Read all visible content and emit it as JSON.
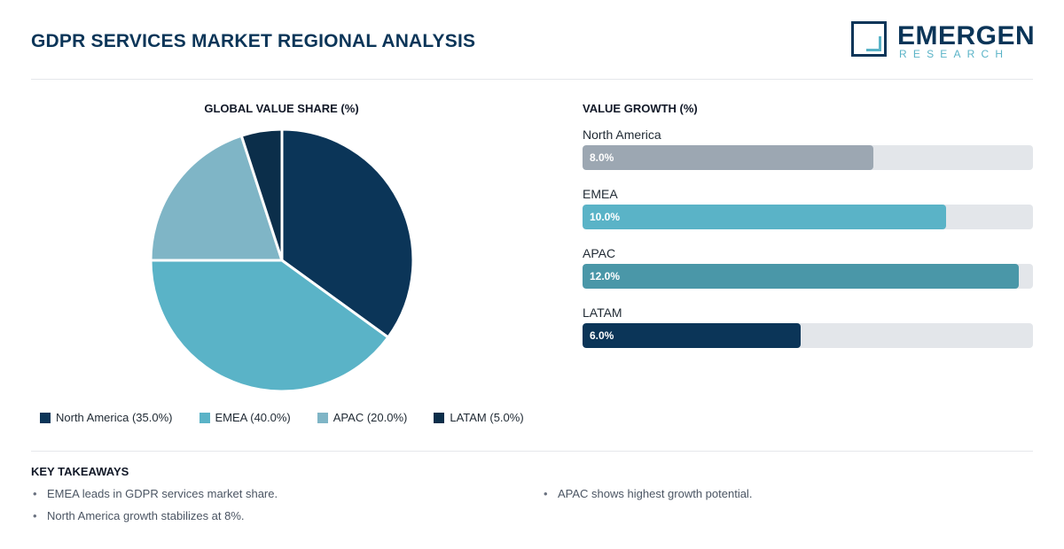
{
  "header": {
    "title": "GDPR SERVICES MARKET REGIONAL ANALYSIS",
    "logo_main": "EMERGEN",
    "logo_sub": "RESEARCH"
  },
  "colors": {
    "north_america": "#0b3558",
    "emea": "#5ab3c7",
    "apac": "#7fb5c6",
    "latam": "#0b2e4a",
    "growth_north_america": "#9ca7b2",
    "growth_emea": "#5ab3c7",
    "growth_apac": "#4a97a8",
    "growth_latam": "#0b3558",
    "track": "#e3e6ea"
  },
  "chart_data": [
    {
      "type": "pie",
      "title": "GLOBAL VALUE SHARE (%)",
      "categories": [
        "North America",
        "EMEA",
        "APAC",
        "LATAM"
      ],
      "values": [
        35.0,
        40.0,
        20.0,
        5.0
      ],
      "legend": [
        {
          "label": "North America (35.0%)",
          "color": "#0b3558"
        },
        {
          "label": "EMEA (40.0%)",
          "color": "#5ab3c7"
        },
        {
          "label": "APAC (20.0%)",
          "color": "#7fb5c6"
        },
        {
          "label": "LATAM (5.0%)",
          "color": "#0b2e4a"
        }
      ],
      "legend_position": "bottom"
    },
    {
      "type": "bar",
      "title": "VALUE GROWTH (%)",
      "categories": [
        "North America",
        "EMEA",
        "APAC",
        "LATAM"
      ],
      "values": [
        8.0,
        10.0,
        12.0,
        6.0
      ],
      "value_labels": [
        "8.0%",
        "10.0%",
        "12.0%",
        "6.0%"
      ],
      "orientation": "horizontal",
      "xlim": [
        0,
        12.4
      ]
    }
  ],
  "takeaways": {
    "title": "KEY TAKEAWAYS",
    "items": [
      "EMEA leads in GDPR services market share.",
      "APAC shows highest growth potential.",
      "North America growth stabilizes at 8%."
    ]
  }
}
